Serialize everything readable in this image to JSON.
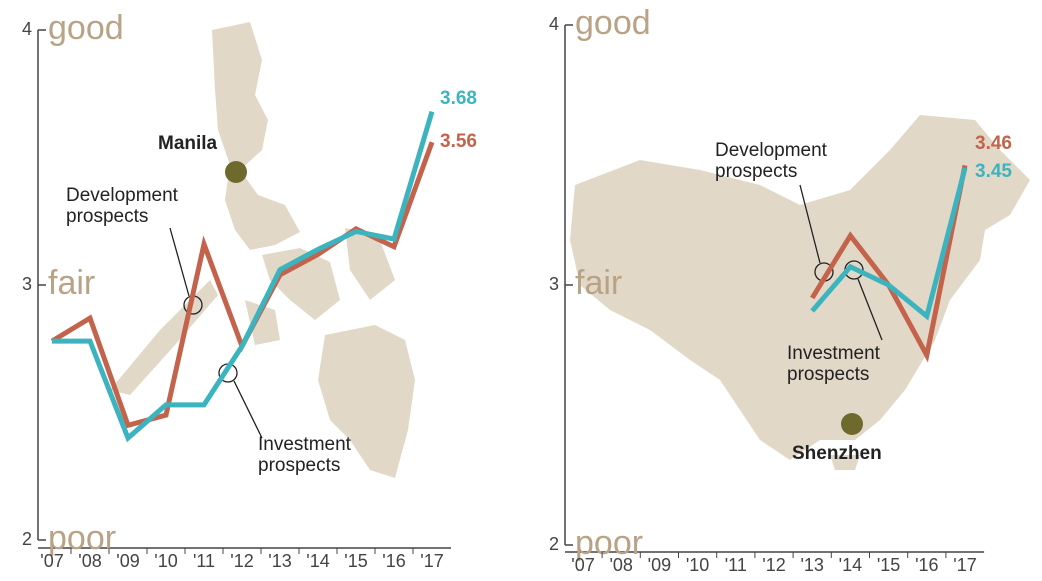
{
  "chart_data": [
    {
      "type": "line",
      "categories": [
        "'07",
        "'08",
        "'09",
        "'10",
        "'11",
        "'12",
        "'13",
        "'14",
        "'15",
        "'16",
        "'17"
      ],
      "ylim": [
        2,
        4
      ],
      "yticks": [
        2,
        3,
        4
      ],
      "scale_labels": [
        {
          "value": 2,
          "label": "poor"
        },
        {
          "value": 3,
          "label": "fair"
        },
        {
          "value": 4,
          "label": "good"
        }
      ],
      "annotations": [
        "Manila"
      ],
      "series": [
        {
          "name": "Development prospects",
          "color": "#c3634c",
          "values": [
            2.78,
            2.87,
            2.45,
            2.49,
            3.16,
            2.76,
            3.04,
            3.12,
            3.22,
            3.15,
            3.56
          ]
        },
        {
          "name": "Investment prospects",
          "color": "#3bb4bf",
          "values": [
            2.78,
            2.78,
            2.4,
            2.53,
            2.53,
            2.76,
            3.06,
            3.14,
            3.21,
            3.18,
            3.68
          ]
        }
      ]
    },
    {
      "type": "line",
      "categories": [
        "'07",
        "'08",
        "'09",
        "'10",
        "'11",
        "'12",
        "'13",
        "'14",
        "'15",
        "'16",
        "'17"
      ],
      "ylim": [
        2,
        4
      ],
      "yticks": [
        2,
        3,
        4
      ],
      "scale_labels": [
        {
          "value": 2,
          "label": "poor"
        },
        {
          "value": 3,
          "label": "fair"
        },
        {
          "value": 4,
          "label": "good"
        }
      ],
      "annotations": [
        "Shenzhen"
      ],
      "series": [
        {
          "name": "Development prospects",
          "color": "#c3634c",
          "values": [
            null,
            null,
            null,
            null,
            null,
            null,
            2.95,
            3.19,
            3.0,
            2.73,
            3.46
          ]
        },
        {
          "name": "Investment prospects",
          "color": "#3bb4bf",
          "values": [
            null,
            null,
            null,
            null,
            null,
            null,
            2.9,
            3.07,
            3.0,
            2.88,
            3.45
          ]
        }
      ]
    }
  ]
}
